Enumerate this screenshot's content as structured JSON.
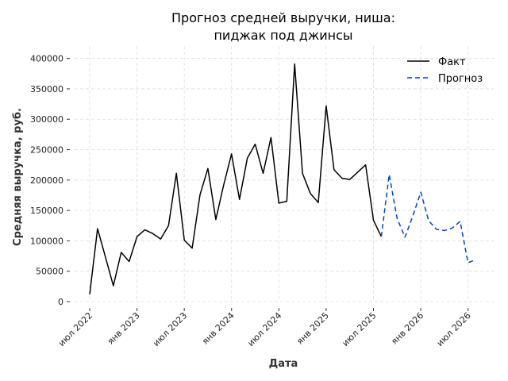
{
  "chart_data": {
    "type": "line",
    "title_line1": "Прогноз средней выручки, ниша:",
    "title_line2": "пиджак под джинсы",
    "xlabel": "Дата",
    "ylabel": "Средняя выручка, руб.",
    "ylim": [
      0,
      410000
    ],
    "y_ticks": [
      0,
      50000,
      100000,
      150000,
      200000,
      250000,
      300000,
      350000,
      400000
    ],
    "x_ticks": [
      {
        "date": "2022-07",
        "label": "июл 2022"
      },
      {
        "date": "2023-01",
        "label": "янв 2023"
      },
      {
        "date": "2023-07",
        "label": "июл 2023"
      },
      {
        "date": "2024-01",
        "label": "янв 2024"
      },
      {
        "date": "2024-07",
        "label": "июл 2024"
      },
      {
        "date": "2025-01",
        "label": "янв 2025"
      },
      {
        "date": "2025-07",
        "label": "июл 2025"
      },
      {
        "date": "2026-01",
        "label": "янв 2026"
      },
      {
        "date": "2026-07",
        "label": "июл 2026"
      }
    ],
    "grid": true,
    "legend_position": "top-right",
    "series": [
      {
        "name": "Факт",
        "color": "#000000",
        "style": "solid",
        "x": [
          "2022-07",
          "2022-08",
          "2022-09",
          "2022-10",
          "2022-11",
          "2022-12",
          "2023-01",
          "2023-02",
          "2023-03",
          "2023-04",
          "2023-05",
          "2023-06",
          "2023-07",
          "2023-08",
          "2023-09",
          "2023-10",
          "2023-11",
          "2023-12",
          "2024-01",
          "2024-02",
          "2024-03",
          "2024-04",
          "2024-05",
          "2024-06",
          "2024-07",
          "2024-08",
          "2024-09",
          "2024-10",
          "2024-11",
          "2024-12",
          "2025-01",
          "2025-02",
          "2025-03",
          "2025-04",
          "2025-05",
          "2025-06",
          "2025-07",
          "2025-08"
        ],
        "values": [
          12000,
          120000,
          73000,
          26000,
          81000,
          66000,
          107000,
          118000,
          112000,
          103000,
          125000,
          211000,
          101000,
          88000,
          176000,
          219000,
          135000,
          192000,
          243000,
          168000,
          236000,
          259000,
          211000,
          270000,
          162000,
          165000,
          391000,
          211000,
          178000,
          163000,
          322000,
          217000,
          203000,
          201000,
          213000,
          225000,
          134000,
          107000
        ]
      },
      {
        "name": "Прогноз",
        "color": "#0044cc",
        "style": "dashed",
        "x": [
          "2025-08",
          "2025-09",
          "2025-10",
          "2025-11",
          "2025-12",
          "2026-01",
          "2026-02",
          "2026-03",
          "2026-04",
          "2026-05",
          "2026-06",
          "2026-07",
          "2026-08"
        ],
        "values": [
          107000,
          209000,
          137000,
          106000,
          141000,
          180000,
          133000,
          119000,
          117000,
          121000,
          132000,
          64000,
          69000
        ]
      }
    ]
  }
}
